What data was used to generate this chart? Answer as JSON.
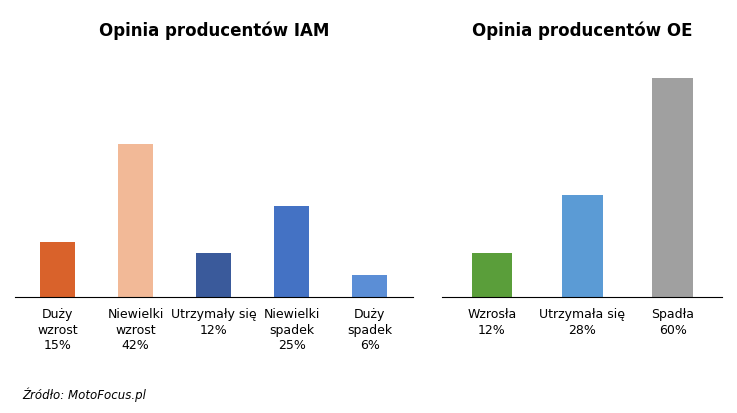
{
  "iam_title": "Opinia producentów IAM",
  "oe_title": "Opinia producentów OE",
  "source": "Źródło: MotoFocus.pl",
  "iam_labels": [
    [
      "Duży",
      "wzrost",
      "15%"
    ],
    [
      "Niewielki",
      "wzrost",
      "42%"
    ],
    [
      "Utrzymały się",
      "12%"
    ],
    [
      "Niewielki",
      "spadek",
      "25%"
    ],
    [
      "Duży",
      "spadek",
      "6%"
    ]
  ],
  "iam_values": [
    15,
    42,
    12,
    25,
    6
  ],
  "iam_colors": [
    "#D9622B",
    "#F2B997",
    "#3A5A9B",
    "#4472C4",
    "#5B8ED6"
  ],
  "oe_labels": [
    [
      "Wzrosła",
      "12%"
    ],
    [
      "Utrzymała się",
      "28%"
    ],
    [
      "Spadła",
      "60%"
    ]
  ],
  "oe_values": [
    12,
    28,
    60
  ],
  "oe_colors": [
    "#5A9E3A",
    "#5B9BD5",
    "#A0A0A0"
  ],
  "ylim": [
    0,
    68
  ],
  "bg_color": "#FFFFFF",
  "bar_width": 0.45,
  "label_fontsize": 9.0,
  "title_fontsize": 12
}
